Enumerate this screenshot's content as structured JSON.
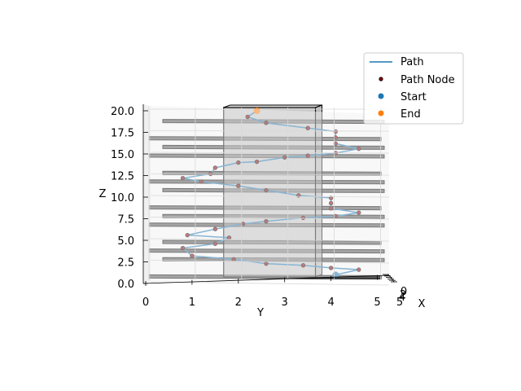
{
  "chart_data": {
    "type": "line",
    "projection": "3d",
    "title": "",
    "xlabel": "X",
    "ylabel": "Y",
    "zlabel": "Z",
    "y_ticks": [
      "0",
      "1",
      "2",
      "3",
      "4",
      "5"
    ],
    "z_ticks": [
      "0.0",
      "2.5",
      "5.0",
      "7.5",
      "10.0",
      "12.5",
      "15.0",
      "17.5",
      "20.0"
    ],
    "x_ticks_visible": [
      "0",
      "2",
      "4",
      "5"
    ],
    "ylim": [
      0,
      5
    ],
    "zlim": [
      0,
      20
    ],
    "grid": true,
    "legend_placement": "top-right",
    "legend": [
      {
        "label": "Path",
        "kind": "line",
        "color": "#1f77b4"
      },
      {
        "label": "Path Node",
        "kind": "marker",
        "color": "#8b0000"
      },
      {
        "label": "Start",
        "kind": "marker",
        "color": "#1f77b4"
      },
      {
        "label": "End",
        "kind": "marker",
        "color": "#ff7f0e"
      }
    ],
    "floors_z": [
      1,
      3,
      4,
      5,
      7,
      8,
      9,
      11,
      12,
      13,
      15,
      16,
      17,
      19
    ],
    "floor_color": "#3a3a3a",
    "column": {
      "y_range": [
        1.7,
        3.7
      ],
      "z_range": [
        0,
        20
      ],
      "color": "#9a9a9a"
    },
    "series": [
      {
        "name": "Path",
        "points_yz": [
          [
            4.1,
            1.0
          ],
          [
            4.6,
            1.6
          ],
          [
            4.0,
            1.8
          ],
          [
            3.4,
            2.1
          ],
          [
            2.6,
            2.3
          ],
          [
            1.9,
            2.8
          ],
          [
            1.0,
            3.2
          ],
          [
            0.8,
            4.1
          ],
          [
            1.5,
            4.6
          ],
          [
            1.8,
            5.3
          ],
          [
            0.9,
            5.6
          ],
          [
            1.5,
            6.3
          ],
          [
            2.1,
            6.9
          ],
          [
            2.6,
            7.2
          ],
          [
            3.4,
            7.6
          ],
          [
            4.1,
            7.8
          ],
          [
            4.6,
            8.2
          ],
          [
            4.0,
            8.7
          ],
          [
            4.0,
            9.3
          ],
          [
            4.0,
            9.9
          ],
          [
            3.3,
            10.2
          ],
          [
            2.6,
            10.8
          ],
          [
            2.0,
            11.3
          ],
          [
            1.2,
            11.8
          ],
          [
            0.8,
            12.2
          ],
          [
            1.4,
            12.7
          ],
          [
            1.5,
            13.4
          ],
          [
            2.0,
            14.0
          ],
          [
            2.4,
            14.1
          ],
          [
            3.0,
            14.6
          ],
          [
            3.5,
            14.8
          ],
          [
            4.1,
            15.1
          ],
          [
            4.6,
            15.6
          ],
          [
            4.1,
            16.2
          ],
          [
            4.1,
            16.9
          ],
          [
            4.1,
            17.6
          ],
          [
            3.5,
            18.0
          ],
          [
            2.6,
            18.6
          ],
          [
            2.2,
            19.3
          ],
          [
            2.4,
            20.0
          ]
        ],
        "start_index": 0,
        "end_index": 39
      }
    ]
  }
}
